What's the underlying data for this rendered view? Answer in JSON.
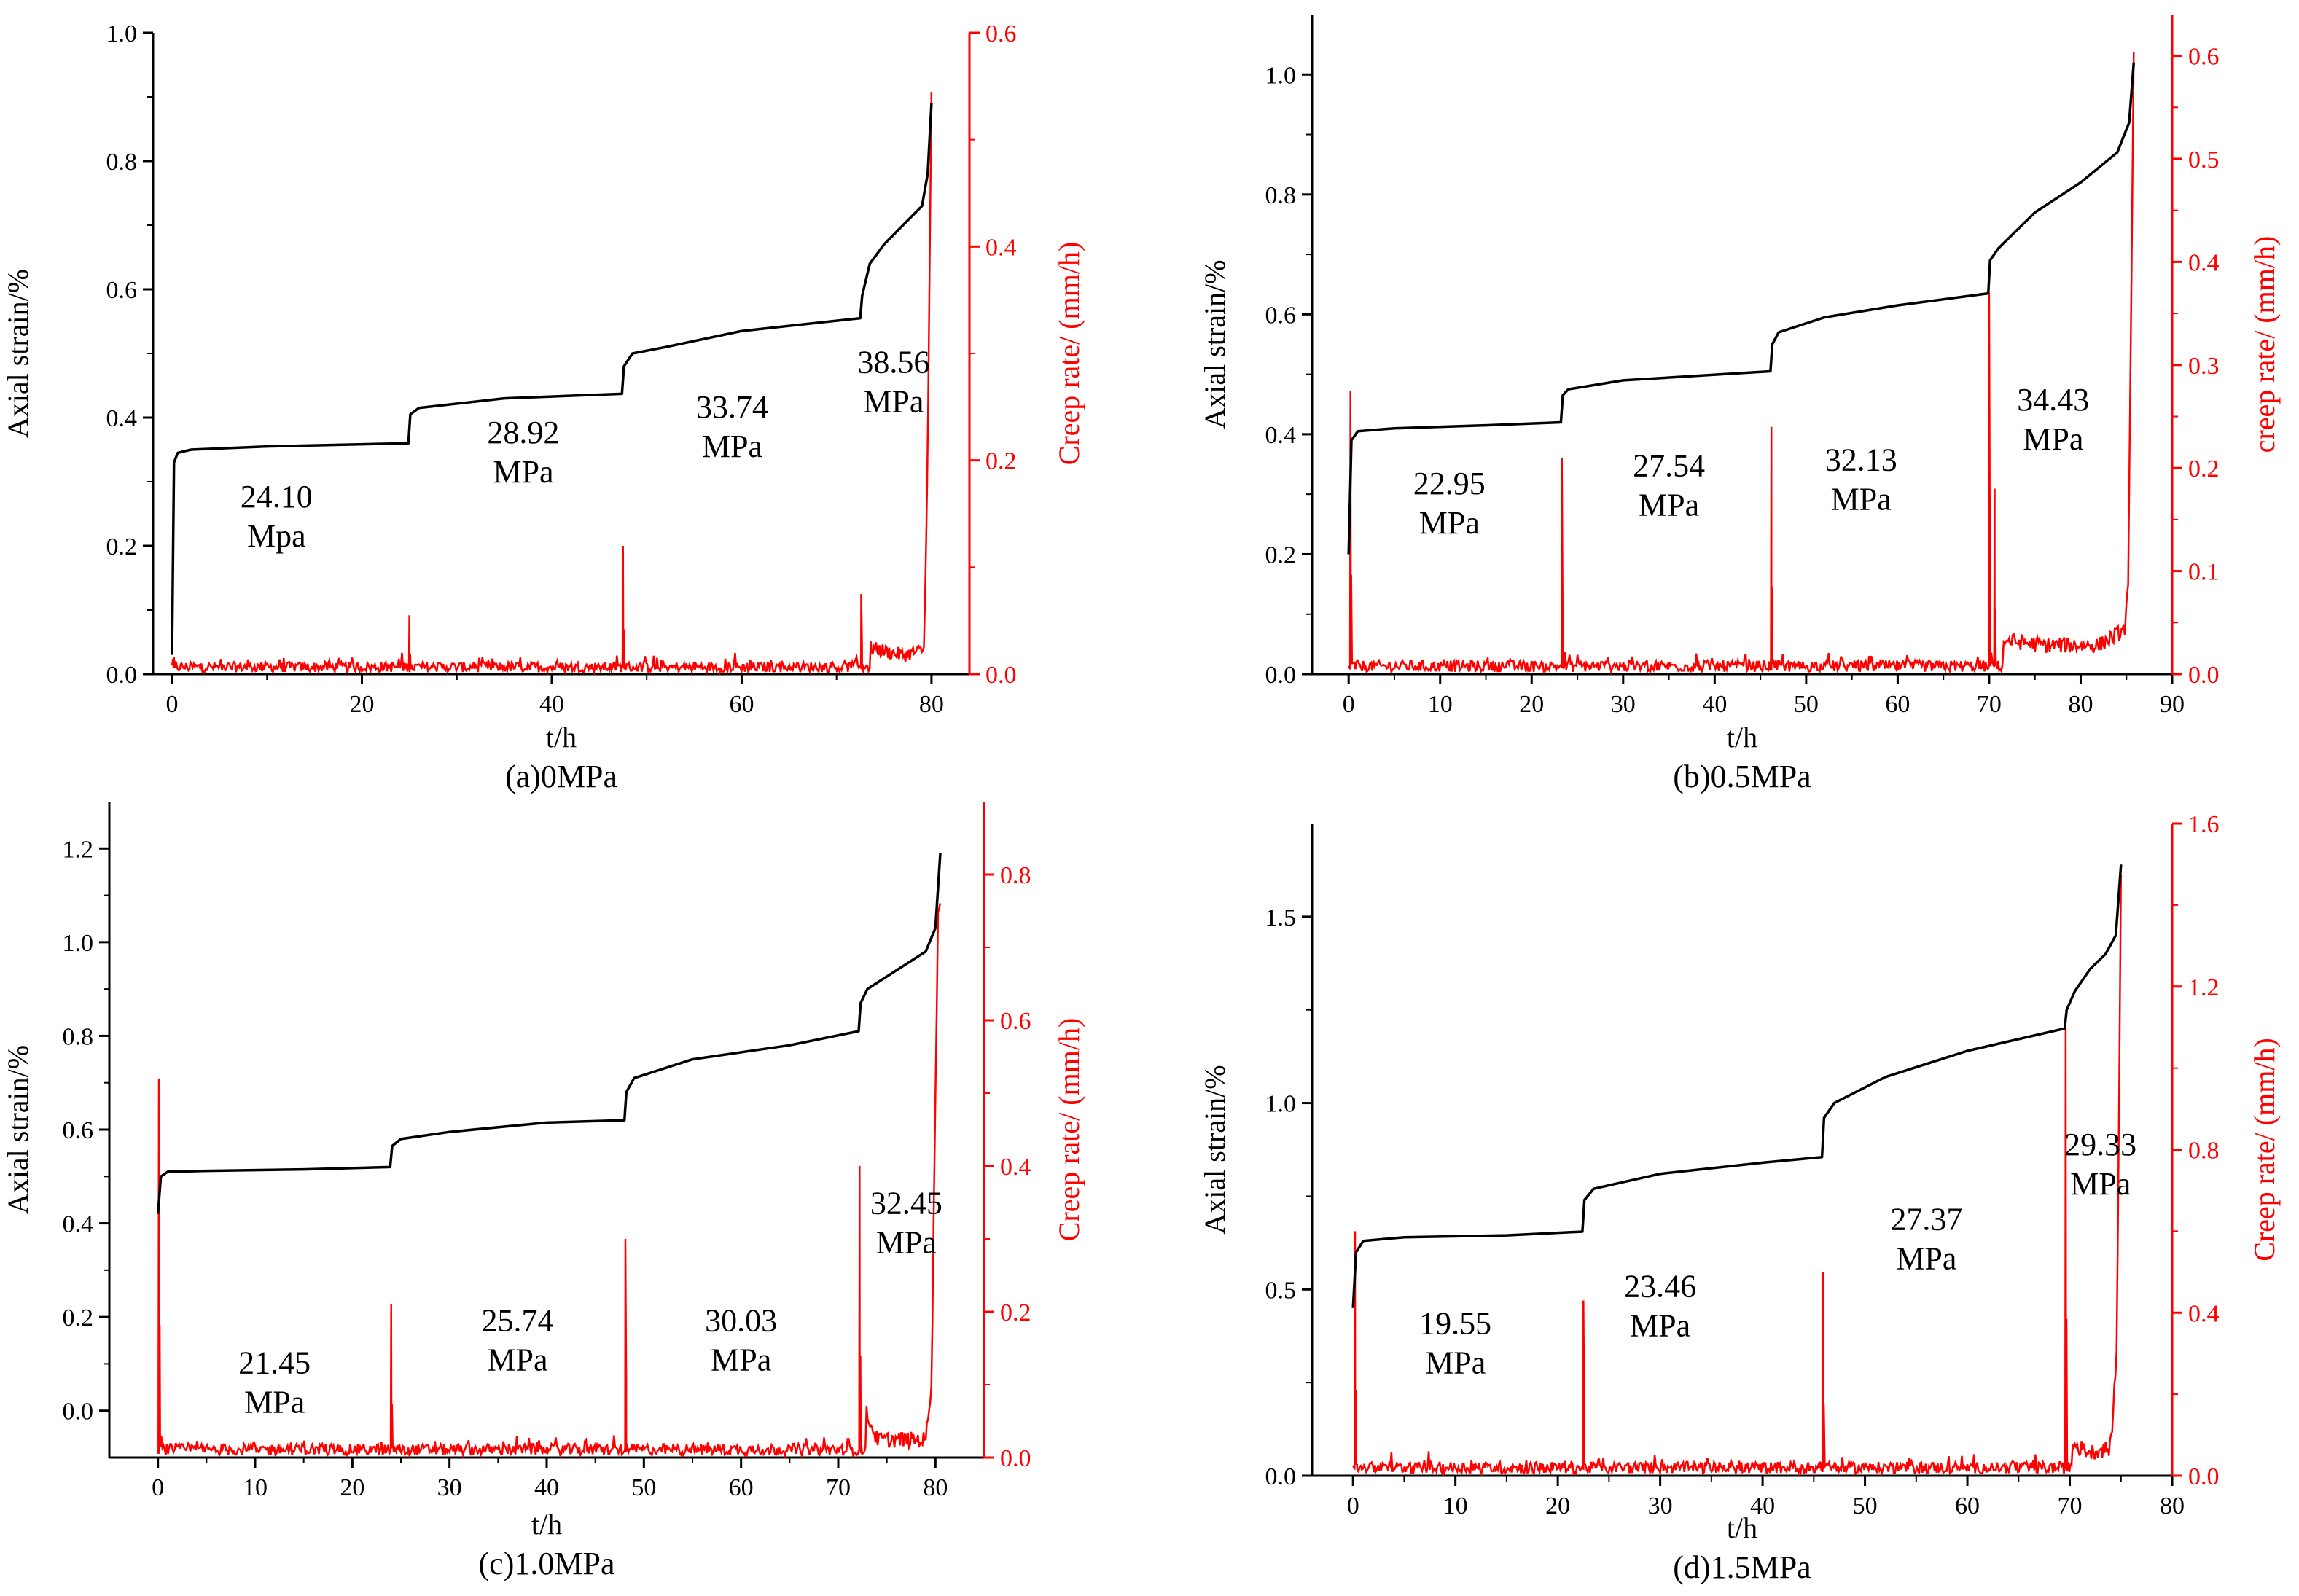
{
  "chart_data": [
    {
      "type": "line",
      "caption": "(a)0MPa",
      "xlabel": "t/h",
      "ylabel": "Axial strain/%",
      "y2label": "Creep rate/ (mm/h)",
      "xlim": [
        -2,
        84
      ],
      "xticks": [
        "0",
        "20",
        "40",
        "60",
        "80"
      ],
      "xtick_values": [
        0,
        20,
        40,
        60,
        80
      ],
      "ylim": [
        0.0,
        1.0
      ],
      "yticks": [
        "0.0",
        "0.2",
        "0.4",
        "0.6",
        "0.8",
        "1.0"
      ],
      "ytick_values": [
        0.0,
        0.2,
        0.4,
        0.6,
        0.8,
        1.0
      ],
      "y2lim": [
        0.0,
        0.6
      ],
      "y2ticks": [
        "0.0",
        "0.2",
        "0.4",
        "0.6"
      ],
      "y2tick_values": [
        0.0,
        0.2,
        0.4,
        0.6
      ],
      "strain_series": {
        "name": "Axial strain",
        "color": "#000000",
        "x": [
          0,
          0.2,
          0.6,
          2,
          10,
          24.9,
          25.1,
          26,
          35,
          47.4,
          47.6,
          48.5,
          52,
          60,
          72.5,
          72.7,
          73.5,
          75,
          77,
          79,
          79.6,
          80.0
        ],
        "y": [
          0.03,
          0.33,
          0.345,
          0.35,
          0.355,
          0.36,
          0.405,
          0.415,
          0.43,
          0.437,
          0.48,
          0.5,
          0.51,
          0.535,
          0.555,
          0.59,
          0.64,
          0.67,
          0.7,
          0.73,
          0.78,
          0.89
        ]
      },
      "rate_series": {
        "name": "Creep rate",
        "color": "#ff0000",
        "baseline": 0.006,
        "end_x": 80,
        "spikes": [
          {
            "x": 0.2,
            "value": 0.016
          },
          {
            "x": 25.0,
            "value": 0.055
          },
          {
            "x": 47.5,
            "value": 0.12
          },
          {
            "x": 72.6,
            "value": 0.075
          }
        ],
        "tail": {
          "x": [
            73.5,
            77,
            79.2,
            79.6,
            80.0
          ],
          "y": [
            0.022,
            0.015,
            0.02,
            0.2,
            0.54
          ]
        }
      },
      "annotations": [
        {
          "x": 11,
          "y": 0.26,
          "lines": [
            "24.10",
            "Mpa"
          ]
        },
        {
          "x": 37,
          "y": 0.36,
          "lines": [
            "28.92",
            "MPa"
          ]
        },
        {
          "x": 59,
          "y": 0.4,
          "lines": [
            "33.74",
            "MPa"
          ]
        },
        {
          "x": 76,
          "y": 0.47,
          "lines": [
            "38.56",
            "MPa"
          ]
        }
      ]
    },
    {
      "type": "line",
      "caption": "(b)0.5MPa",
      "xlabel": "t/h",
      "ylabel": "Axial strain/%",
      "y2label": "creep rate/ (mm/h)",
      "xlim": [
        -4,
        90
      ],
      "xticks": [
        "0",
        "10",
        "20",
        "30",
        "40",
        "50",
        "60",
        "70",
        "80",
        "90"
      ],
      "xtick_values": [
        0,
        10,
        20,
        30,
        40,
        50,
        60,
        70,
        80,
        90
      ],
      "ylim": [
        0.0,
        1.1
      ],
      "yticks": [
        "0.0",
        "0.2",
        "0.4",
        "0.6",
        "0.8",
        "1.0"
      ],
      "ytick_values": [
        0.0,
        0.2,
        0.4,
        0.6,
        0.8,
        1.0
      ],
      "y2lim": [
        0.0,
        0.64
      ],
      "y2ticks": [
        "0.0",
        "0.1",
        "0.2",
        "0.3",
        "0.4",
        "0.5",
        "0.6"
      ],
      "y2tick_values": [
        0.0,
        0.1,
        0.2,
        0.3,
        0.4,
        0.5,
        0.6
      ],
      "strain_series": {
        "name": "Axial strain",
        "color": "#000000",
        "x": [
          0,
          0.3,
          1,
          5,
          15,
          23.2,
          23.4,
          24,
          30,
          46.1,
          46.3,
          47,
          52,
          60,
          69.9,
          70.1,
          71,
          75,
          80,
          84,
          85.3,
          85.8
        ],
        "y": [
          0.2,
          0.39,
          0.405,
          0.41,
          0.415,
          0.42,
          0.465,
          0.475,
          0.49,
          0.505,
          0.55,
          0.57,
          0.595,
          0.615,
          0.635,
          0.69,
          0.71,
          0.77,
          0.82,
          0.87,
          0.92,
          1.02
        ]
      },
      "rate_series": {
        "name": "Creep rate",
        "color": "#ff0000",
        "baseline": 0.007,
        "end_x": 85.8,
        "spikes": [
          {
            "x": 0.2,
            "value": 0.275
          },
          {
            "x": 23.3,
            "value": 0.21
          },
          {
            "x": 46.2,
            "value": 0.24
          },
          {
            "x": 70.0,
            "value": 0.37
          },
          {
            "x": 70.6,
            "value": 0.18
          }
        ],
        "tail": {
          "x": [
            71.5,
            76,
            82,
            84.8,
            85.2,
            85.8
          ],
          "y": [
            0.03,
            0.025,
            0.025,
            0.04,
            0.08,
            0.6
          ]
        }
      },
      "annotations": [
        {
          "x": 11,
          "y": 0.3,
          "lines": [
            "22.95",
            "MPa"
          ]
        },
        {
          "x": 35,
          "y": 0.33,
          "lines": [
            "27.54",
            "MPa"
          ]
        },
        {
          "x": 56,
          "y": 0.34,
          "lines": [
            "32.13",
            "MPa"
          ]
        },
        {
          "x": 77,
          "y": 0.44,
          "lines": [
            "34.43",
            "MPa"
          ]
        }
      ]
    },
    {
      "type": "line",
      "caption": "(c)1.0MPa",
      "xlabel": "t/h",
      "ylabel": "Axial strain/%",
      "y2label": "Creep rate/ (mm/h)",
      "xlim": [
        -5,
        85
      ],
      "xticks": [
        "0",
        "10",
        "20",
        "30",
        "40",
        "50",
        "60",
        "70",
        "80"
      ],
      "xtick_values": [
        0,
        10,
        20,
        30,
        40,
        50,
        60,
        70,
        80
      ],
      "ylim": [
        -0.1,
        1.3
      ],
      "yticks": [
        "0.0",
        "0.2",
        "0.4",
        "0.6",
        "0.8",
        "1.0",
        "1.2"
      ],
      "ytick_values": [
        0.0,
        0.2,
        0.4,
        0.6,
        0.8,
        1.0,
        1.2
      ],
      "y2lim": [
        0.0,
        0.9
      ],
      "y2ticks": [
        "0.0",
        "0.2",
        "0.4",
        "0.6",
        "0.8"
      ],
      "y2tick_values": [
        0.0,
        0.2,
        0.4,
        0.6,
        0.8
      ],
      "strain_series": {
        "name": "Axial strain",
        "color": "#000000",
        "x": [
          0,
          0.3,
          1,
          5,
          15,
          23.9,
          24.1,
          25,
          30,
          40,
          48.0,
          48.2,
          49,
          55,
          65,
          72.1,
          72.3,
          73,
          76,
          79,
          80.0,
          80.5
        ],
        "y": [
          0.42,
          0.5,
          0.51,
          0.512,
          0.515,
          0.52,
          0.565,
          0.58,
          0.595,
          0.615,
          0.62,
          0.68,
          0.71,
          0.75,
          0.78,
          0.81,
          0.87,
          0.9,
          0.94,
          0.98,
          1.03,
          1.19
        ]
      },
      "rate_series": {
        "name": "Creep rate",
        "color": "#ff0000",
        "baseline": 0.01,
        "end_x": 80.5,
        "spikes": [
          {
            "x": 0.1,
            "value": 0.52
          },
          {
            "x": 24.0,
            "value": 0.21
          },
          {
            "x": 48.1,
            "value": 0.3
          },
          {
            "x": 72.2,
            "value": 0.4
          }
        ],
        "tail": {
          "x": [
            72.8,
            74,
            79,
            79.6,
            80.0,
            80.3
          ],
          "y": [
            0.06,
            0.02,
            0.02,
            0.1,
            0.5,
            0.76
          ]
        }
      },
      "annotations": [
        {
          "x": 12,
          "y": 0.08,
          "lines": [
            "21.45",
            "MPa"
          ]
        },
        {
          "x": 37,
          "y": 0.17,
          "lines": [
            "25.74",
            "MPa"
          ]
        },
        {
          "x": 60,
          "y": 0.17,
          "lines": [
            "30.03",
            "MPa"
          ]
        },
        {
          "x": 77,
          "y": 0.42,
          "lines": [
            "32.45",
            "MPa"
          ]
        }
      ]
    },
    {
      "type": "line",
      "caption": "(d)1.5MPa",
      "xlabel": "t/h",
      "ylabel": "Axial strain/%",
      "y2label": "Creep rate/ (mm/h)",
      "xlim": [
        -4,
        80
      ],
      "xticks": [
        "0",
        "10",
        "20",
        "30",
        "40",
        "50",
        "60",
        "70",
        "80"
      ],
      "xtick_values": [
        0,
        10,
        20,
        30,
        40,
        50,
        60,
        70,
        80
      ],
      "ylim": [
        0.0,
        1.75
      ],
      "yticks": [
        "0.0",
        "0.5",
        "1.0",
        "1.5"
      ],
      "ytick_values": [
        0.0,
        0.5,
        1.0,
        1.5
      ],
      "y2lim": [
        0.0,
        1.6
      ],
      "y2ticks": [
        "0.0",
        "0.4",
        "0.8",
        "1.2",
        "1.6"
      ],
      "y2tick_values": [
        0.0,
        0.4,
        0.8,
        1.2,
        1.6
      ],
      "strain_series": {
        "name": "Axial strain",
        "color": "#000000",
        "x": [
          0,
          0.3,
          1,
          5,
          15,
          22.4,
          22.6,
          23.5,
          30,
          40,
          45.8,
          46.0,
          47,
          52,
          60,
          69.5,
          69.7,
          70.5,
          72,
          73.5,
          74.5,
          75.0
        ],
        "y": [
          0.45,
          0.6,
          0.63,
          0.64,
          0.645,
          0.655,
          0.74,
          0.77,
          0.81,
          0.84,
          0.855,
          0.96,
          1.0,
          1.07,
          1.14,
          1.2,
          1.25,
          1.3,
          1.36,
          1.4,
          1.45,
          1.64
        ]
      },
      "rate_series": {
        "name": "Creep rate",
        "color": "#ff0000",
        "baseline": 0.018,
        "end_x": 75.0,
        "spikes": [
          {
            "x": 0.2,
            "value": 0.6
          },
          {
            "x": 22.5,
            "value": 0.43
          },
          {
            "x": 45.9,
            "value": 0.5
          },
          {
            "x": 69.6,
            "value": 1.1
          }
        ],
        "tail": {
          "x": [
            70.2,
            72,
            74,
            74.6,
            75.0
          ],
          "y": [
            0.07,
            0.05,
            0.06,
            0.3,
            1.48
          ]
        }
      },
      "annotations": [
        {
          "x": 10,
          "y": 0.38,
          "lines": [
            "19.55",
            "MPa"
          ]
        },
        {
          "x": 30,
          "y": 0.48,
          "lines": [
            "23.46",
            "MPa"
          ]
        },
        {
          "x": 56,
          "y": 0.66,
          "lines": [
            "27.37",
            "MPa"
          ]
        },
        {
          "x": 73,
          "y": 0.86,
          "lines": [
            "29.33",
            "MPa"
          ]
        }
      ]
    }
  ]
}
